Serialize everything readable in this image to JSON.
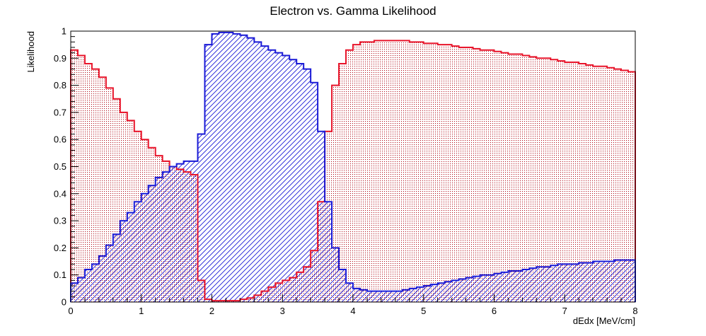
{
  "chart_data": {
    "type": "step-histogram",
    "title": "Electron vs. Gamma Likelihood",
    "xlabel": "dEdx [MeV/cm]",
    "ylabel": "Likelihood",
    "xlim": [
      0,
      8
    ],
    "ylim": [
      0,
      1
    ],
    "xticks": [
      "0",
      "1",
      "2",
      "3",
      "4",
      "5",
      "6",
      "7",
      "8"
    ],
    "yticks": [
      "0",
      "0.1",
      "0.2",
      "0.3",
      "0.4",
      "0.5",
      "0.6",
      "0.7",
      "0.8",
      "0.9",
      "1"
    ],
    "grid": false,
    "legend": "none",
    "bin_width": 0.1,
    "series": [
      {
        "color": "#e8142a",
        "fill": "dotted",
        "values": [
          0.93,
          0.91,
          0.88,
          0.86,
          0.83,
          0.79,
          0.75,
          0.7,
          0.67,
          0.63,
          0.6,
          0.57,
          0.54,
          0.52,
          0.5,
          0.49,
          0.48,
          0.47,
          0.08,
          0.01,
          0.005,
          0.005,
          0.005,
          0.005,
          0.01,
          0.015,
          0.025,
          0.04,
          0.055,
          0.07,
          0.08,
          0.09,
          0.11,
          0.13,
          0.19,
          0.37,
          0.63,
          0.8,
          0.88,
          0.93,
          0.95,
          0.96,
          0.96,
          0.965,
          0.965,
          0.965,
          0.965,
          0.965,
          0.96,
          0.96,
          0.955,
          0.955,
          0.95,
          0.95,
          0.945,
          0.94,
          0.94,
          0.935,
          0.93,
          0.93,
          0.925,
          0.92,
          0.915,
          0.915,
          0.91,
          0.905,
          0.9,
          0.9,
          0.895,
          0.89,
          0.885,
          0.885,
          0.88,
          0.875,
          0.87,
          0.87,
          0.865,
          0.86,
          0.855,
          0.85
        ]
      },
      {
        "color": "#1a1ad6",
        "fill": "hatched",
        "values": [
          0.07,
          0.09,
          0.12,
          0.14,
          0.17,
          0.21,
          0.25,
          0.3,
          0.33,
          0.37,
          0.4,
          0.43,
          0.46,
          0.48,
          0.5,
          0.51,
          0.52,
          0.52,
          0.62,
          0.95,
          0.99,
          0.995,
          0.995,
          0.99,
          0.985,
          0.975,
          0.96,
          0.945,
          0.93,
          0.92,
          0.91,
          0.895,
          0.88,
          0.86,
          0.81,
          0.63,
          0.37,
          0.2,
          0.12,
          0.07,
          0.05,
          0.045,
          0.04,
          0.04,
          0.04,
          0.04,
          0.04,
          0.045,
          0.05,
          0.055,
          0.06,
          0.065,
          0.07,
          0.075,
          0.08,
          0.085,
          0.09,
          0.095,
          0.1,
          0.1,
          0.105,
          0.11,
          0.115,
          0.115,
          0.12,
          0.125,
          0.13,
          0.13,
          0.135,
          0.14,
          0.14,
          0.14,
          0.145,
          0.145,
          0.15,
          0.15,
          0.15,
          0.155,
          0.155,
          0.155
        ]
      }
    ]
  }
}
